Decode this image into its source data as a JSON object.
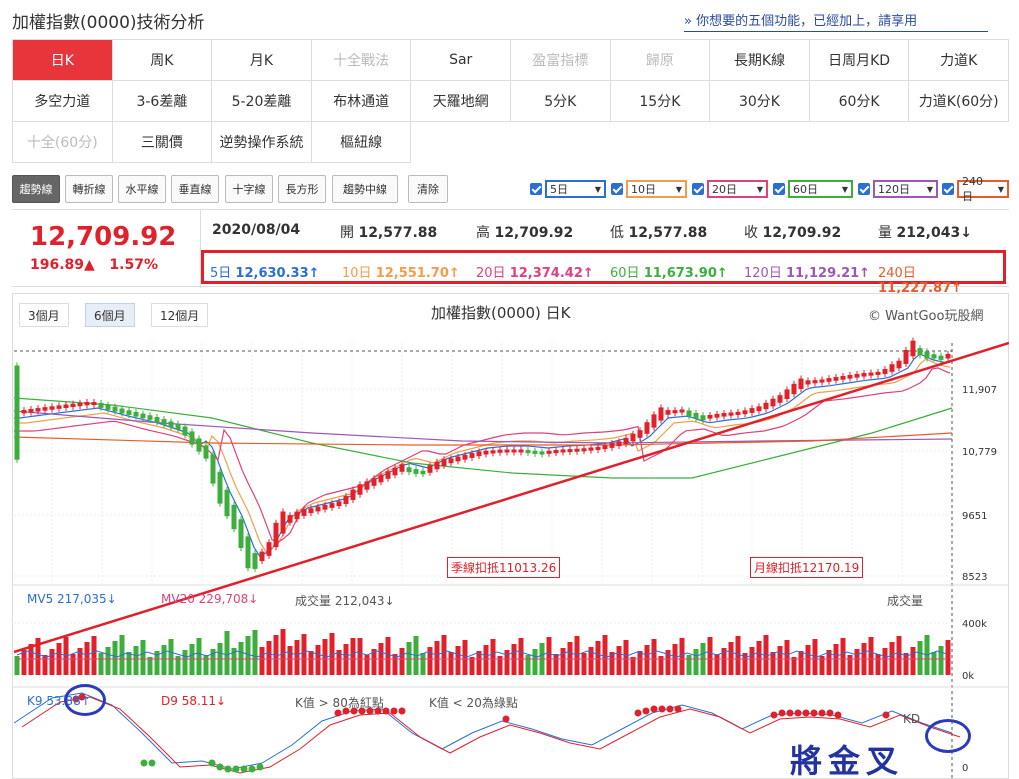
{
  "header": {
    "title": "加權指數(0000)技術分析",
    "promo": "» 你想要的五個功能，已經加上，請享用"
  },
  "functions": [
    {
      "label": "日K",
      "state": "active"
    },
    {
      "label": "周K",
      "state": "normal"
    },
    {
      "label": "月K",
      "state": "normal"
    },
    {
      "label": "十全戰法",
      "state": "disabled"
    },
    {
      "label": "Sar",
      "state": "normal"
    },
    {
      "label": "盈富指標",
      "state": "disabled"
    },
    {
      "label": "歸原",
      "state": "disabled"
    },
    {
      "label": "長期K線",
      "state": "normal"
    },
    {
      "label": "日周月KD",
      "state": "normal"
    },
    {
      "label": "力道K",
      "state": "normal"
    },
    {
      "label": "多空力道",
      "state": "normal"
    },
    {
      "label": "3-6差離",
      "state": "normal"
    },
    {
      "label": "5-20差離",
      "state": "normal"
    },
    {
      "label": "布林通道",
      "state": "normal"
    },
    {
      "label": "天羅地網",
      "state": "normal"
    },
    {
      "label": "5分K",
      "state": "normal"
    },
    {
      "label": "15分K",
      "state": "normal"
    },
    {
      "label": "30分K",
      "state": "normal"
    },
    {
      "label": "60分K",
      "state": "normal"
    },
    {
      "label": "力道K(60分)",
      "state": "normal"
    },
    {
      "label": "十全(60分)",
      "state": "disabled"
    },
    {
      "label": "三關價",
      "state": "normal"
    },
    {
      "label": "逆勢操作系統",
      "state": "normal"
    },
    {
      "label": "樞紐線",
      "state": "normal"
    }
  ],
  "tools": [
    "趨勢線",
    "轉折線",
    "水平線",
    "垂直線",
    "十字線",
    "長方形",
    "趨勢中線",
    "清除"
  ],
  "ma_selectors": [
    {
      "label": "5日",
      "color": "#2a6fd6"
    },
    {
      "label": "10日",
      "color": "#f39c4a"
    },
    {
      "label": "20日",
      "color": "#e0407b"
    },
    {
      "label": "60日",
      "color": "#3cae3c"
    },
    {
      "label": "120日",
      "color": "#9b59b6"
    },
    {
      "label": "240日",
      "color": "#e85b2a"
    }
  ],
  "quote": {
    "price": "12,709.92",
    "change": "196.89▲",
    "change_pct": "1.57%",
    "date": "2020/08/04",
    "open_label": "開",
    "open": "12,577.88",
    "high_label": "高",
    "high": "12,709.92",
    "low_label": "低",
    "low": "12,577.88",
    "close_label": "收",
    "close": "12,709.92",
    "volume_label": "量",
    "volume": "212,043↓"
  },
  "ma_values": [
    {
      "label": "5日",
      "value": "12,630.33↑",
      "color": "#2a6fd6"
    },
    {
      "label": "10日",
      "value": "12,551.70↑",
      "color": "#f39c4a"
    },
    {
      "label": "20日",
      "value": "12,374.42↑",
      "color": "#e0407b"
    },
    {
      "label": "60日",
      "value": "11,673.90↑",
      "color": "#3cae3c"
    },
    {
      "label": "120日",
      "value": "11,129.21↑",
      "color": "#9b59b6"
    },
    {
      "label": "240日",
      "value": "11,227.87↑",
      "color": "#e85b2a"
    }
  ],
  "chart": {
    "ranges": [
      "3個月",
      "6個月",
      "12個月"
    ],
    "active_range": "6個月",
    "title": "加權指數(0000) 日K",
    "copyright": "© WantGoo玩股網",
    "price_ticks": [
      "11,907",
      "10,779",
      "9651",
      "8523"
    ],
    "season_tag": "季線扣抵11013.26",
    "month_tag": "月線扣抵12170.19",
    "vol_mv5_label": "MV5",
    "vol_mv5": "217,035↓",
    "vol_mv20_label": "MV20",
    "vol_mv20": "229,708↓",
    "vol_label": "成交量",
    "vol_value": "212,043↓",
    "vol_title": "成交量",
    "vol_ticks": [
      "400k",
      "0k"
    ],
    "kd_k_label": "K9",
    "kd_k": "53.88↑",
    "kd_d_label": "D9",
    "kd_d": "58.11↓",
    "kd_note1": "K值 > 80為紅點",
    "kd_note2": "K值 < 20為綠點",
    "kd_title": "KD",
    "kd_tick": "0",
    "signature": "將金叉"
  },
  "chart_data": {
    "type": "candlestick",
    "price_ticks": [
      8523,
      9651,
      10779,
      11907
    ],
    "ma_lines": [
      "5日",
      "10日",
      "20日",
      "60日",
      "120日",
      "240日"
    ],
    "last_close": 12709.92
  }
}
